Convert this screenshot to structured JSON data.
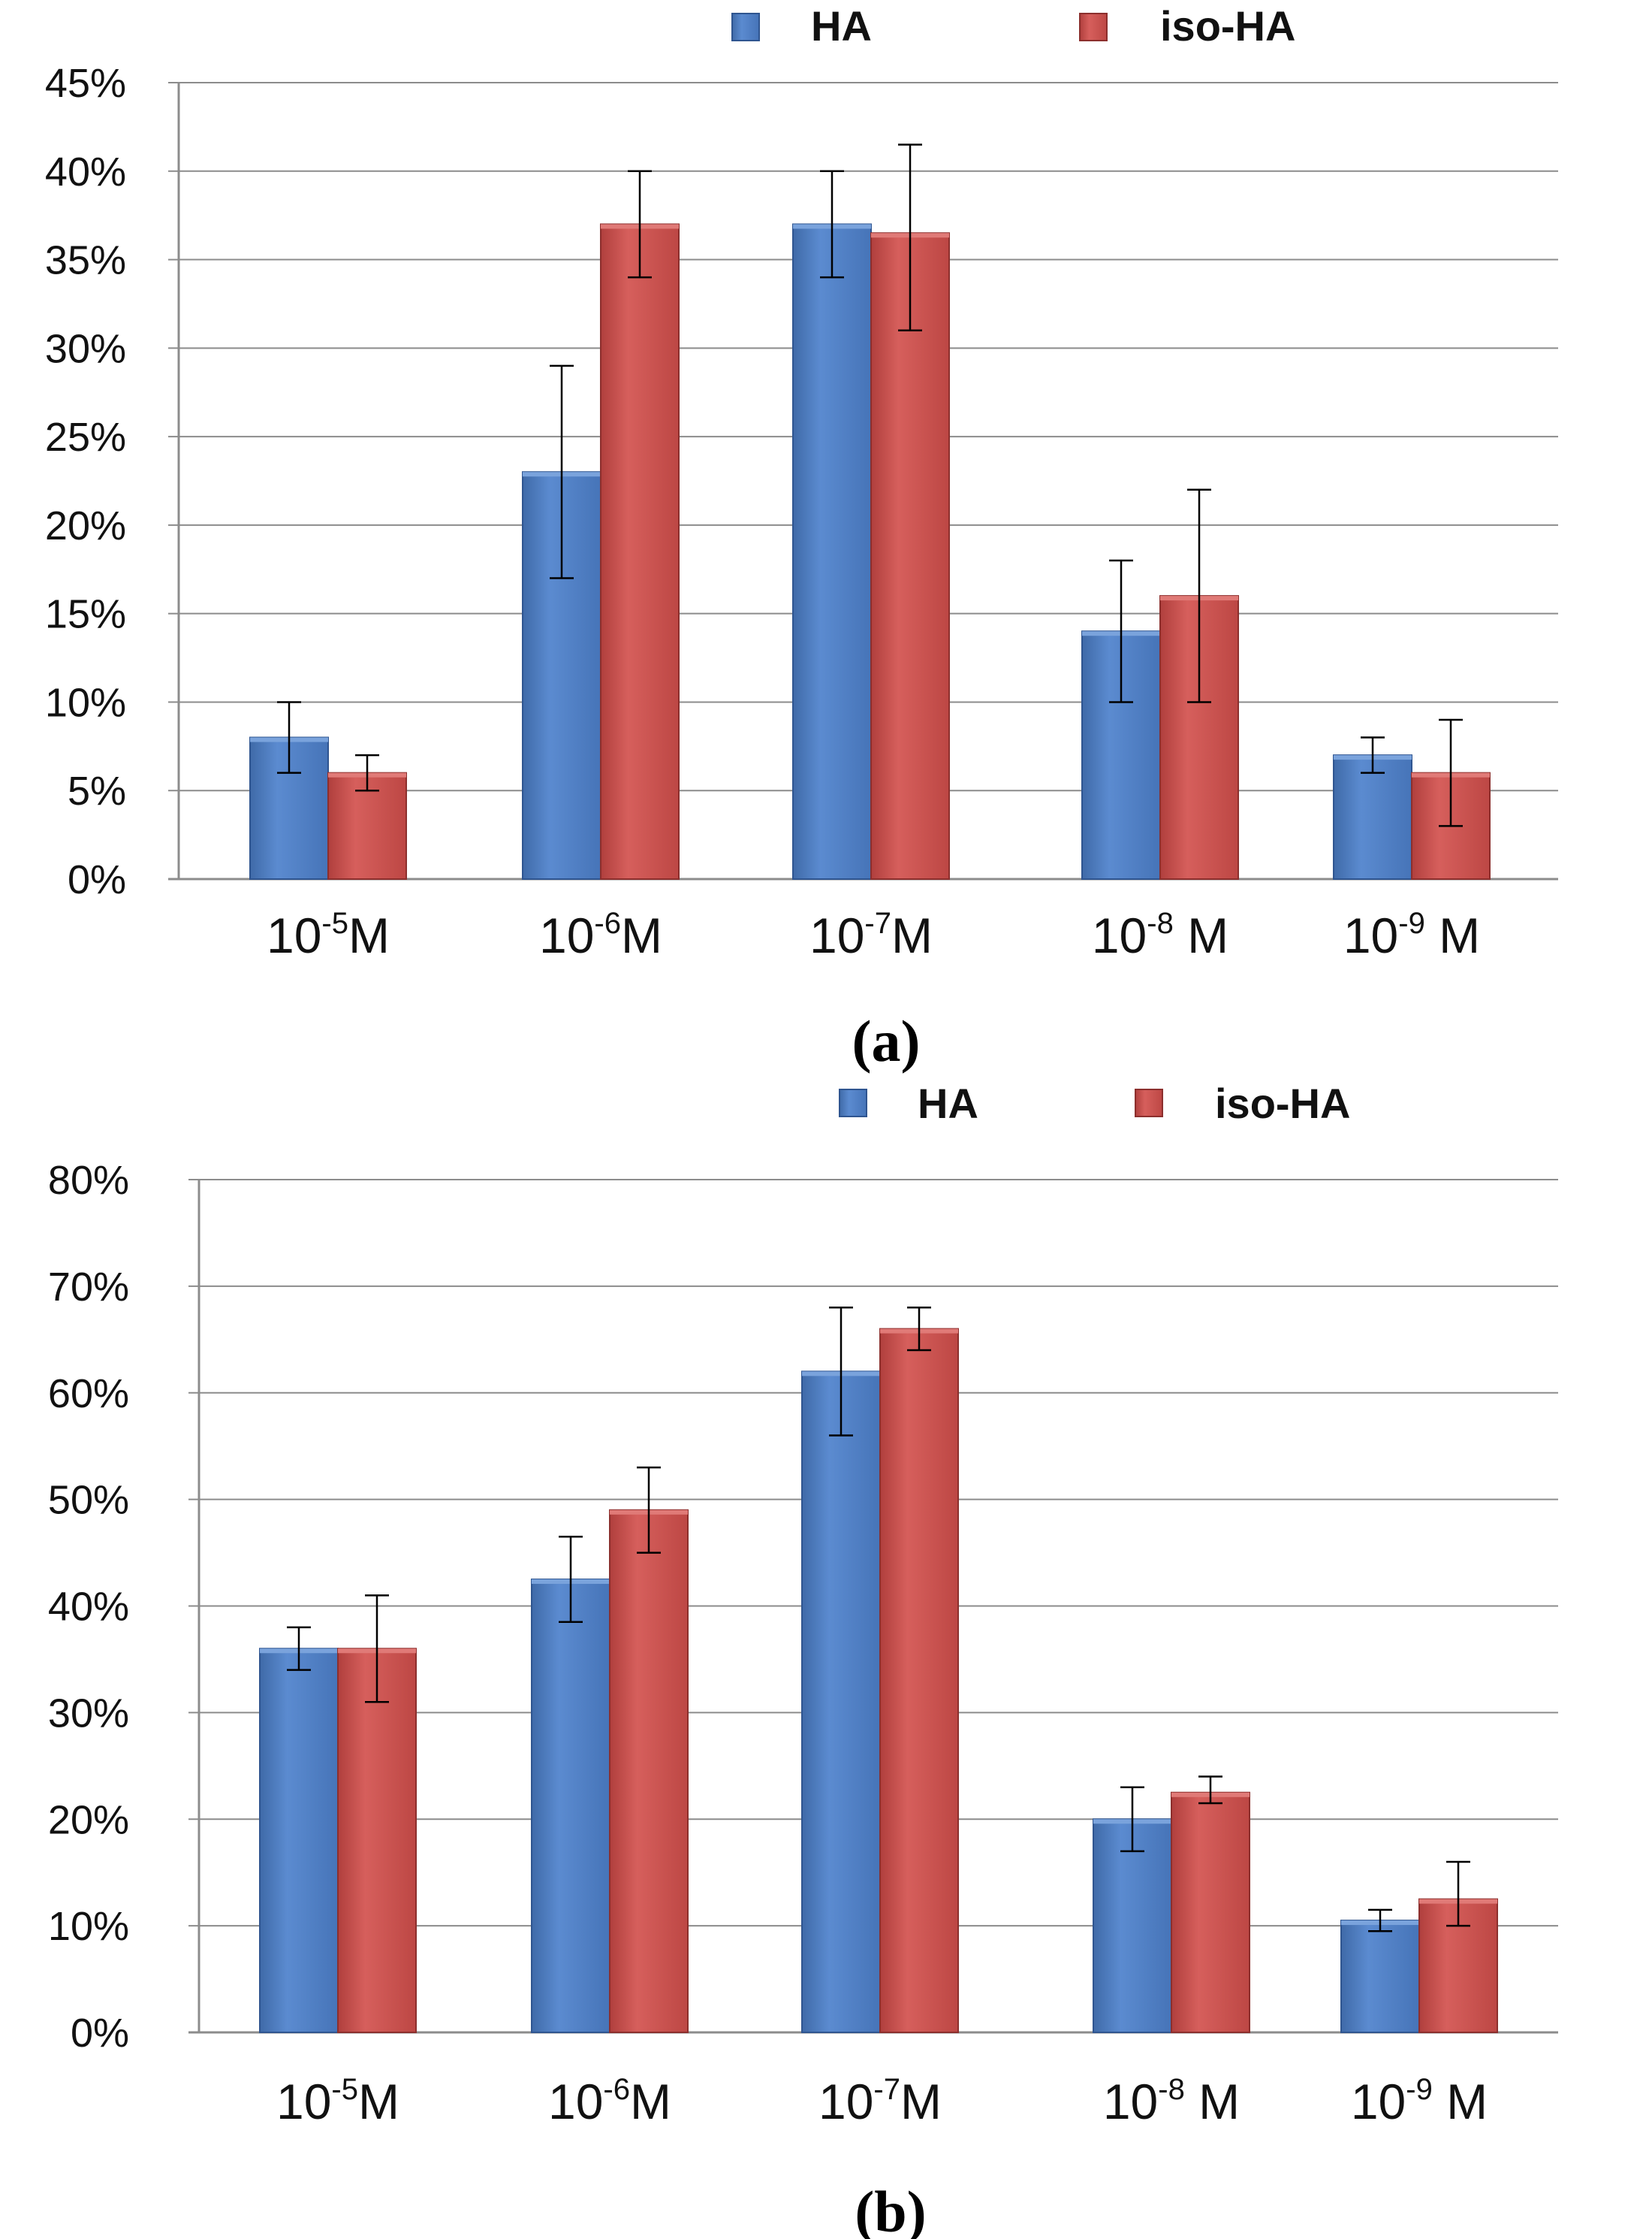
{
  "colors": {
    "ha": "#4f7fc3",
    "iso_ha": "#c9504e",
    "grid": "#8c8c8c",
    "axis": "#8c8c8c",
    "error_bar": "#000000"
  },
  "chart_data": [
    {
      "type": "bar",
      "panel_label": "(a)",
      "legend": [
        "HA",
        "iso-HA"
      ],
      "categories": [
        {
          "base": "10",
          "exp": "-5",
          "unit": "M"
        },
        {
          "base": "10",
          "exp": "-6",
          "unit": "M"
        },
        {
          "base": "10",
          "exp": "-7",
          "unit": "M"
        },
        {
          "base": "10",
          "exp": "-8",
          "unit": " M"
        },
        {
          "base": "10",
          "exp": "-9",
          "unit": " M"
        }
      ],
      "y_ticks": [
        "0%",
        "5%",
        "10%",
        "15%",
        "20%",
        "25%",
        "30%",
        "35%",
        "40%",
        "45%"
      ],
      "ylim": [
        0,
        45
      ],
      "y_step": 5,
      "series": [
        {
          "name": "HA",
          "values": [
            8,
            23,
            37,
            14,
            7
          ],
          "err_low": [
            6,
            17,
            34,
            10,
            6
          ],
          "err_high": [
            10,
            29,
            40,
            18,
            8
          ]
        },
        {
          "name": "iso-HA",
          "values": [
            6,
            37,
            36.5,
            16,
            6
          ],
          "err_low": [
            5,
            34,
            31,
            10,
            3
          ],
          "err_high": [
            7,
            40,
            41.5,
            22,
            9
          ]
        }
      ]
    },
    {
      "type": "bar",
      "panel_label": "(b)",
      "legend": [
        "HA",
        "iso-HA"
      ],
      "categories": [
        {
          "base": "10",
          "exp": "-5",
          "unit": "M"
        },
        {
          "base": "10",
          "exp": "-6",
          "unit": "M"
        },
        {
          "base": "10",
          "exp": "-7",
          "unit": "M"
        },
        {
          "base": "10",
          "exp": "-8",
          "unit": " M"
        },
        {
          "base": "10",
          "exp": "-9",
          "unit": " M"
        }
      ],
      "y_ticks": [
        "0%",
        "10%",
        "20%",
        "30%",
        "40%",
        "50%",
        "60%",
        "70%",
        "80%"
      ],
      "ylim": [
        0,
        80
      ],
      "y_step": 10,
      "series": [
        {
          "name": "HA",
          "values": [
            36,
            42.5,
            62,
            20,
            10.5
          ],
          "err_low": [
            34,
            38.5,
            56,
            17,
            9.5
          ],
          "err_high": [
            38,
            46.5,
            68,
            23,
            11.5
          ]
        },
        {
          "name": "iso-HA",
          "values": [
            36,
            49,
            66,
            22.5,
            12.5
          ],
          "err_low": [
            31,
            45,
            64,
            21.5,
            10
          ],
          "err_high": [
            41,
            53,
            68,
            24,
            16
          ]
        }
      ]
    }
  ]
}
